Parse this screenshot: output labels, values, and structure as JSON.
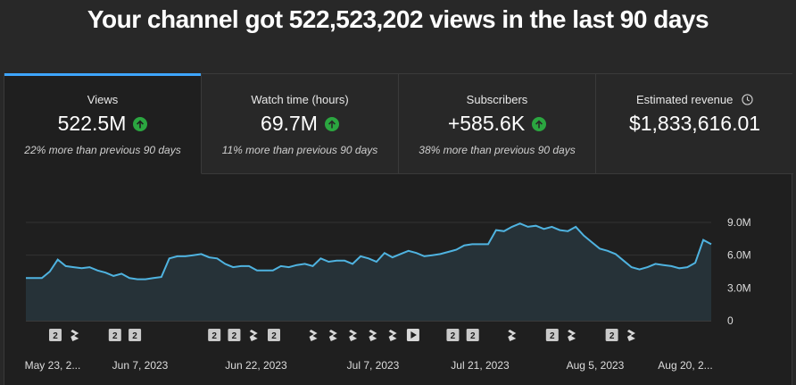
{
  "headline": "Your channel got 522,523,202 views in the last 90 days",
  "metrics": [
    {
      "label": "Views",
      "value": "522.5M",
      "comparison": "22% more than previous 90 days",
      "trend": "up",
      "icon": "arrow-up-icon"
    },
    {
      "label": "Watch time (hours)",
      "value": "69.7M",
      "comparison": "11% more than previous 90 days",
      "trend": "up",
      "icon": "arrow-up-icon"
    },
    {
      "label": "Subscribers",
      "value": "+585.6K",
      "comparison": "38% more than previous 90 days",
      "trend": "up",
      "icon": "arrow-up-icon"
    },
    {
      "label": "Estimated revenue",
      "value": "$1,833,616.01",
      "comparison": "",
      "icon": "clock-icon"
    }
  ],
  "colors": {
    "accent": "#3ea6ff",
    "trend_up": "#2ba640",
    "line": "#4fb3e0",
    "area": "#263238"
  },
  "chart_data": {
    "type": "area",
    "title": "",
    "xlabel": "",
    "ylabel": "",
    "x_tick_labels": [
      "May 23, 2...",
      "Jun 7, 2023",
      "Jun 22, 2023",
      "Jul 7, 2023",
      "Jul 21, 2023",
      "Aug 5, 2023",
      "Aug 20, 2..."
    ],
    "y_tick_labels": [
      "0",
      "3.0M",
      "6.0M",
      "9.0M"
    ],
    "ylim": [
      0,
      9000000
    ],
    "grid": true,
    "series": [
      {
        "values": [
          3.9,
          3.9,
          3.9,
          4.5,
          5.6,
          5.0,
          4.9,
          4.8,
          4.9,
          4.6,
          4.4,
          4.1,
          4.3,
          3.9,
          3.8,
          3.8,
          3.9,
          4.0,
          5.7,
          5.9,
          5.9,
          6.0,
          6.1,
          5.8,
          5.7,
          5.2,
          4.9,
          5.0,
          5.0,
          4.6,
          4.6,
          4.6,
          5.0,
          4.9,
          5.1,
          5.2,
          5.0,
          5.7,
          5.4,
          5.5,
          5.5,
          5.2,
          5.9,
          5.7,
          5.4,
          6.2,
          5.8,
          6.1,
          6.4,
          6.2,
          5.9,
          6.0,
          6.1,
          6.3,
          6.5,
          6.9,
          7.0,
          7.0,
          7.0,
          8.3,
          8.2,
          8.6,
          8.9,
          8.6,
          8.7,
          8.4,
          8.6,
          8.3,
          8.2,
          8.6,
          7.8,
          7.2,
          6.6,
          6.4,
          6.1,
          5.5,
          4.9,
          4.7,
          4.9,
          5.2,
          5.1,
          5.0,
          4.8,
          4.9,
          5.3,
          7.4,
          7.0
        ]
      }
    ],
    "markers": [
      "2",
      "shorts",
      "",
      "2",
      "2",
      "",
      "2",
      "2",
      "shorts",
      "2",
      "shorts",
      "shorts",
      "shorts",
      "shorts",
      "shorts",
      "video",
      "2",
      "2",
      "shorts",
      "2",
      "shorts",
      "2",
      "shorts"
    ]
  }
}
